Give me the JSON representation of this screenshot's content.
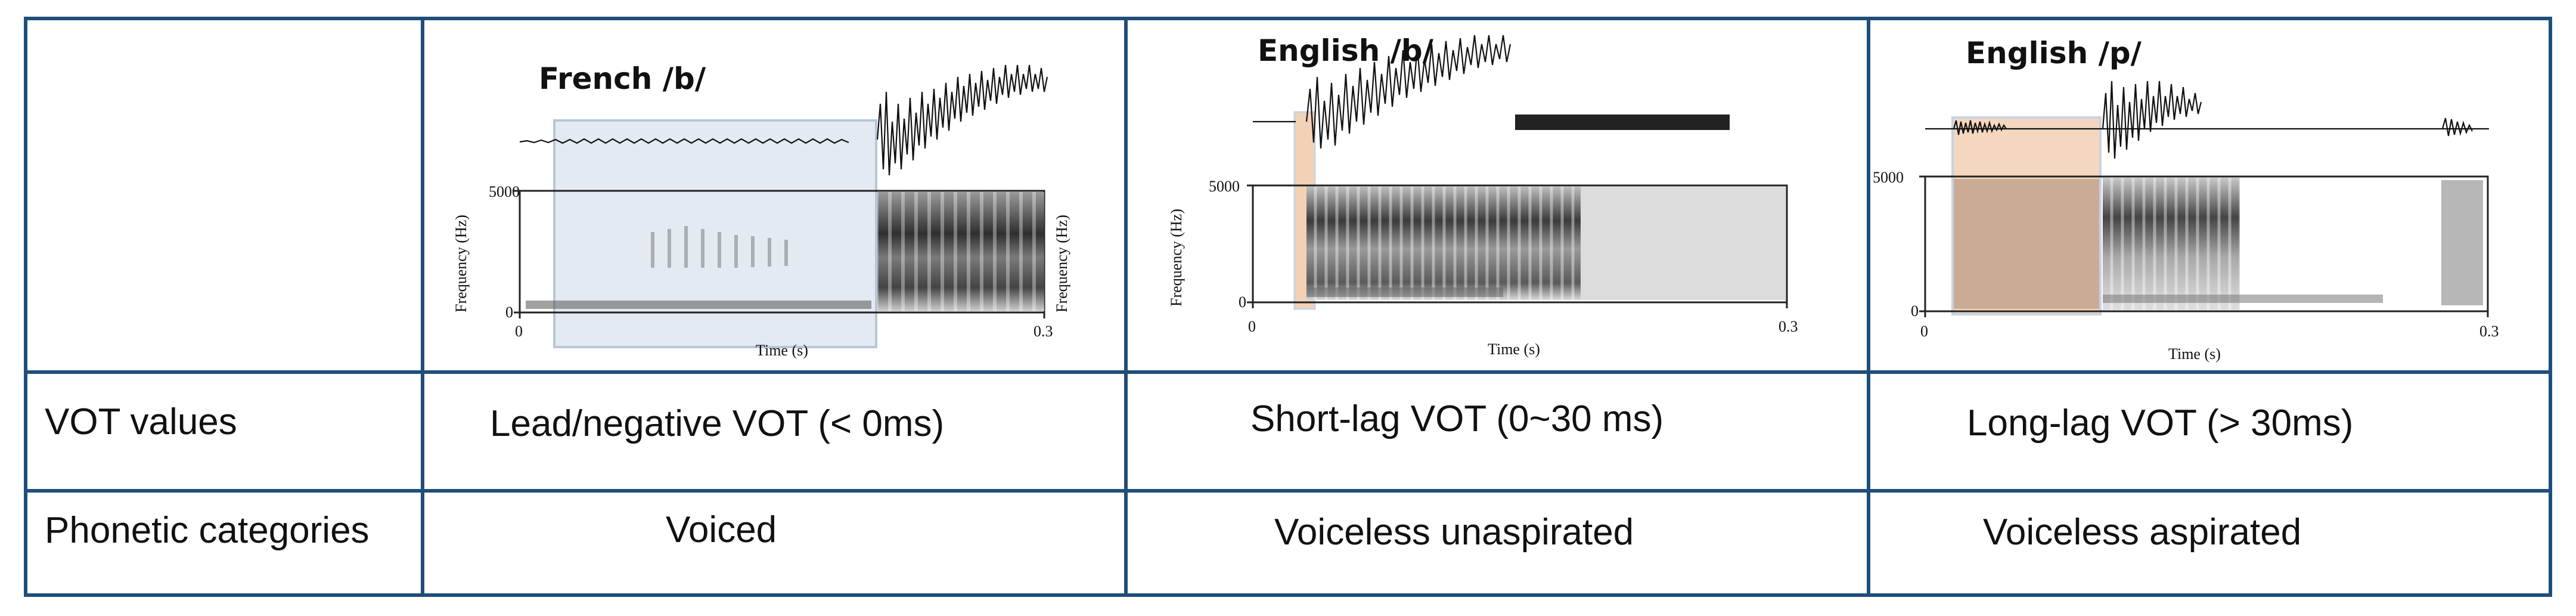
{
  "table": {
    "rows": [
      {
        "header": "",
        "cells": [
          "",
          "",
          ""
        ]
      },
      {
        "header": "VOT values",
        "cells": [
          "Lead/negative VOT (< 0ms)",
          "Short-lag VOT (0~30 ms)",
          "Long-lag VOT (> 30ms)"
        ]
      },
      {
        "header": "Phonetic categories",
        "cells": [
          "Voiced",
          "Voiceless unaspirated",
          "Voiceless aspirated"
        ]
      }
    ]
  },
  "panels": [
    {
      "title": "French /b/",
      "y_axis_label": "Frequency (Hz)",
      "y_max_label": "5000",
      "y_min_label": "0",
      "x_axis_label": "Time (s)",
      "x_min_label": "0",
      "x_max_label": "0.3",
      "highlight": {
        "type": "voicing-lead",
        "color": "#dbe3ee"
      }
    },
    {
      "title": "English /b/",
      "y_axis_label": "Frequency (Hz)",
      "y_max_label": "5000",
      "y_min_label": "0",
      "x_axis_label": "Time (s)",
      "x_min_label": "0",
      "x_max_label": "0.3",
      "highlight": {
        "type": "short-lag",
        "color": "#f1c9a9"
      }
    },
    {
      "title": "English /p/",
      "y_axis_label": "",
      "y_max_label": "5000",
      "y_min_label": "0",
      "x_axis_label": "Time (s)",
      "x_min_label": "0",
      "x_max_label": "0.3",
      "highlight": {
        "type": "aspiration",
        "color": "#f1c9a9"
      }
    }
  ],
  "colors": {
    "grid": "#1f4e79",
    "voiced_box": "#dbe3ee",
    "aspiration_box": "#f1c9a9"
  }
}
